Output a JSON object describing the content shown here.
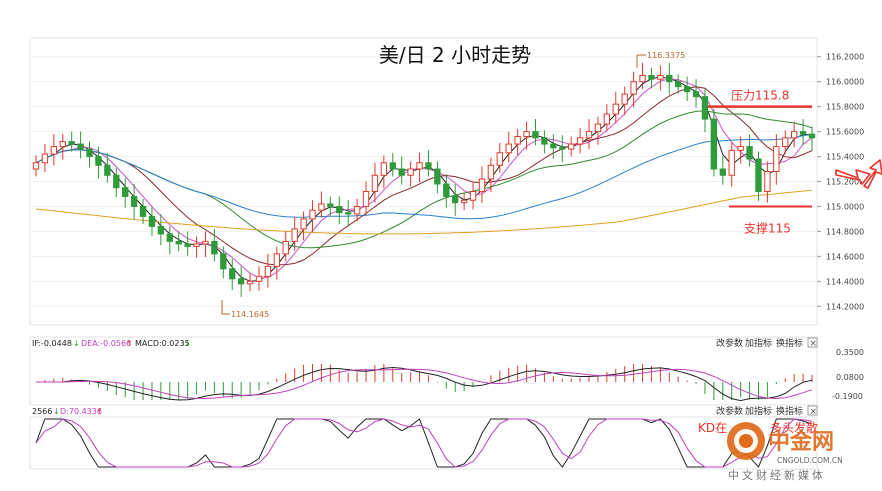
{
  "chart_data": {
    "type": "candlestick",
    "title": "美/日 2 小时走势",
    "price_axis": {
      "ylim": [
        114.05,
        116.35
      ],
      "ticks": [
        "116.2000",
        "116.0000",
        "115.8000",
        "115.6000",
        "115.4000",
        "115.2000",
        "115.0000",
        "114.8000",
        "114.6000",
        "114.4000",
        "114.2000"
      ]
    },
    "annotations": {
      "high": "116.3375",
      "low": "114.1645",
      "resistance_label": "压力115.8",
      "resistance_value": 115.8,
      "support_label": "支撑115",
      "support_value": 115.0
    },
    "closes": [
      115.35,
      115.42,
      115.48,
      115.52,
      115.5,
      115.46,
      115.4,
      115.33,
      115.25,
      115.15,
      115.08,
      115.0,
      114.92,
      114.84,
      114.78,
      114.72,
      114.7,
      114.68,
      114.7,
      114.72,
      114.62,
      114.5,
      114.42,
      114.38,
      114.4,
      114.44,
      114.52,
      114.62,
      114.72,
      114.82,
      114.9,
      114.97,
      115.02,
      115.0,
      114.95,
      114.94,
      115.0,
      115.12,
      115.25,
      115.35,
      115.3,
      115.25,
      115.3,
      115.35,
      115.3,
      115.18,
      115.08,
      115.03,
      115.05,
      115.12,
      115.22,
      115.33,
      115.43,
      115.5,
      115.56,
      115.6,
      115.55,
      115.5,
      115.47,
      115.46,
      115.5,
      115.55,
      115.6,
      115.66,
      115.74,
      115.82,
      115.9,
      116.0,
      116.05,
      116.02,
      116.05,
      116.0,
      115.96,
      115.92,
      115.88,
      115.7,
      115.3,
      115.25,
      115.45,
      115.48,
      115.38,
      115.12,
      115.28,
      115.48,
      115.55,
      115.6,
      115.58,
      115.55
    ],
    "moving_averages": [
      "MA-short",
      "MA-mid",
      "MA-long",
      "MA-60",
      "MA-120",
      "MA-240"
    ],
    "macd": {
      "legend": [
        "IF:-0.0448",
        "DEA:-0.0566",
        "MACD:0.0235"
      ],
      "ticks": [
        "0.3500",
        "0.0800",
        "-0.1900"
      ]
    },
    "kd": {
      "legend": [
        "2566",
        "D:70.4336"
      ],
      "label": "KD在",
      "label2": "多头发散"
    }
  },
  "toolbar": {
    "btn1": "改参数",
    "btn2": "加指标",
    "btn3": "换指标",
    "close": "×"
  },
  "watermark": {
    "brand": "中金网",
    "site": "CNGOLD.COM.CN",
    "slogan": "中文财经新媒体"
  },
  "colors": {
    "up": "#e03a2b",
    "down": "#2f9b3a",
    "resistance": "#e8322a",
    "support": "#e8322a",
    "arrow": "#e8322a",
    "ma_short": "#222222",
    "ma_mid": "#d05fd0",
    "ma_long": "#8a2a2a",
    "ma60": "#2f8a2f",
    "ma120": "#2a7fd0",
    "ma240": "#e0a020"
  }
}
